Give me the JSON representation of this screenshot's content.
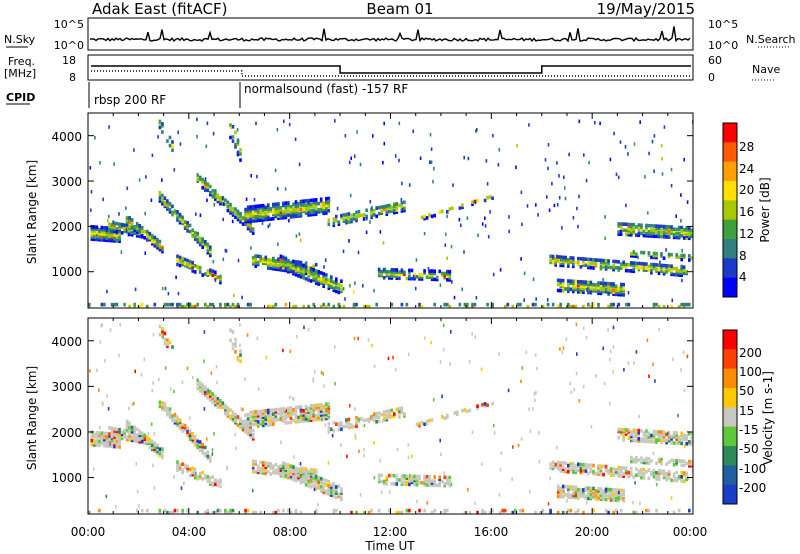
{
  "header": {
    "station": "Adak East (fitACF)",
    "beam": "Beam 01",
    "date": "19/May/2015"
  },
  "top_panel": {
    "left_label": "N.Sky",
    "right_label": "N.Search",
    "left_ticks": [
      "10^5",
      "10^0"
    ],
    "right_ticks": [
      "10^5",
      "10^0"
    ]
  },
  "freq_panel": {
    "left_label_1": "Freq.",
    "left_label_2": "[MHz]",
    "right_label": "Nave",
    "left_ticks": [
      "18",
      "8"
    ],
    "right_ticks": [
      "60",
      "0"
    ],
    "cpid_label": "CPID",
    "cpid_1": "rbsp 200 RF",
    "cpid_2": "normalsound (fast) -157 RF"
  },
  "chart_data": [
    {
      "type": "heatmap",
      "name": "Power",
      "ylabel": "Slant Range [km]",
      "y_ticks": [
        "1000",
        "2000",
        "3000",
        "4000"
      ],
      "ylim": [
        200,
        4500
      ],
      "colorbar_label": "Power [dB]",
      "colorbar_ticks": [
        "28",
        "24",
        "20",
        "16",
        "12",
        "8",
        "4"
      ],
      "colors": [
        "#0000ff",
        "#1c3ac8",
        "#2f7f7f",
        "#3fa040",
        "#aac800",
        "#ffdf00",
        "#ffa000",
        "#ff5a00",
        "#ff0000"
      ]
    },
    {
      "type": "heatmap",
      "name": "Velocity",
      "ylabel": "Slant Range [km]",
      "y_ticks": [
        "1000",
        "2000",
        "3000",
        "4000"
      ],
      "ylim": [
        200,
        4500
      ],
      "colorbar_label": "Velocity [m s-1]",
      "colorbar_ticks": [
        "200",
        "100",
        "50",
        "15",
        "-15",
        "-50",
        "-100",
        "-200"
      ],
      "colors": [
        "#1a3ec8",
        "#2060a0",
        "#2e8b57",
        "#5cc83a",
        "#c8c8c0",
        "#ffc800",
        "#ff8c00",
        "#ff4000",
        "#ff0000"
      ]
    }
  ],
  "x_axis": {
    "ticks": [
      "00:00",
      "04:00",
      "08:00",
      "12:00",
      "16:00",
      "20:00",
      "00:00"
    ],
    "xlabel": "Time UT"
  }
}
